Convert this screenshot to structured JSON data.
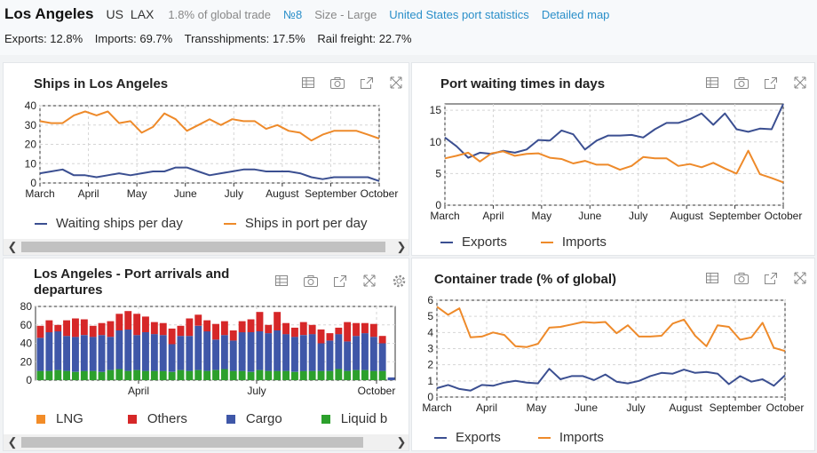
{
  "header": {
    "title": "Los Angeles",
    "country": "US",
    "code": "LAX",
    "share": "1.8% of global trade",
    "rank": "№8",
    "size": "Size - Large",
    "link_stats": "United States port statistics",
    "link_map": "Detailed map",
    "stats": [
      "Exports: 12.8%",
      "Imports: 69.7%",
      "Transshipments: 17.5%",
      "Rail freight: 22.7%"
    ]
  },
  "colors": {
    "blue": "#3b4f91",
    "orange": "#ee8a2a",
    "red": "#d62728",
    "cargo": "#3f57a8",
    "green": "#2ca02c",
    "lng": "#f28c28"
  },
  "panels": {
    "ships": {
      "title": "Ships in Los Angeles",
      "legend": [
        "Waiting ships per day",
        "Ships in port per day"
      ]
    },
    "waiting": {
      "title": "Port waiting times in days",
      "legend": [
        "Exports",
        "Imports"
      ]
    },
    "arrivals": {
      "title": "Los Angeles - Port arrivals and departures",
      "legend": [
        "LNG",
        "Others",
        "Cargo",
        "Liquid b"
      ]
    },
    "container": {
      "title": "Container trade (% of global)",
      "legend": [
        "Exports",
        "Imports"
      ]
    }
  },
  "chart_data": [
    {
      "type": "line",
      "title": "Ships in Los Angeles",
      "ylim": [
        0,
        40
      ],
      "yticks": [
        0,
        10,
        20,
        30,
        40
      ],
      "xticks": [
        "March",
        "April",
        "May",
        "June",
        "July",
        "August",
        "September",
        "October"
      ],
      "series": [
        {
          "name": "Waiting ships per day",
          "values": [
            5,
            6,
            7,
            4,
            4,
            3,
            4,
            5,
            4,
            5,
            6,
            6,
            8,
            8,
            6,
            4,
            5,
            6,
            7,
            7,
            6,
            6,
            6,
            5,
            3,
            2,
            3,
            3,
            3,
            3,
            1
          ]
        },
        {
          "name": "Ships in port per day",
          "values": [
            32,
            31,
            31,
            35,
            37,
            35,
            37,
            31,
            32,
            26,
            29,
            36,
            33,
            27,
            30,
            33,
            30,
            33,
            32,
            32,
            28,
            30,
            27,
            26,
            22,
            25,
            27,
            27,
            27,
            25,
            23
          ]
        }
      ]
    },
    {
      "type": "line",
      "title": "Port waiting times in days",
      "ylim": [
        0,
        16
      ],
      "yticks": [
        0,
        5,
        10,
        15
      ],
      "xticks": [
        "March",
        "April",
        "May",
        "June",
        "July",
        "August",
        "September",
        "October"
      ],
      "series": [
        {
          "name": "Exports",
          "values": [
            10.7,
            9.3,
            7.5,
            8.3,
            8.1,
            8.6,
            8.3,
            8.8,
            10.3,
            10.2,
            11.8,
            11.2,
            8.8,
            10.2,
            11.0,
            11.0,
            11.1,
            10.7,
            12.0,
            13.0,
            13.0,
            13.6,
            14.5,
            12.7,
            14.5,
            12.0,
            11.6,
            12.1,
            12.0,
            16.0
          ]
        },
        {
          "name": "Imports",
          "values": [
            7.4,
            7.8,
            8.3,
            6.9,
            8.2,
            8.5,
            7.8,
            8.1,
            8.2,
            7.5,
            7.3,
            6.6,
            7.0,
            6.4,
            6.4,
            5.6,
            6.2,
            7.6,
            7.4,
            7.4,
            6.2,
            6.5,
            6.0,
            6.7,
            5.8,
            5.0,
            8.6,
            4.9,
            4.3,
            3.6
          ]
        }
      ]
    },
    {
      "type": "bar",
      "title": "Los Angeles - Port arrivals and departures",
      "ylim": [
        0,
        80
      ],
      "yticks": [
        0,
        20,
        40,
        60,
        80
      ],
      "xticks": [
        "April",
        "July",
        "October"
      ],
      "series": [
        {
          "name": "Liquid b",
          "values": [
            10,
            10,
            11,
            10,
            9,
            10,
            10,
            9,
            11,
            12,
            10,
            11,
            10,
            10,
            10,
            9,
            11,
            10,
            11,
            10,
            11,
            12,
            10,
            10,
            9,
            11,
            10,
            10,
            10,
            9,
            10,
            10,
            10,
            10,
            12,
            10,
            11,
            11,
            10,
            10,
            0
          ]
        },
        {
          "name": "Cargo",
          "values": [
            36,
            42,
            42,
            38,
            38,
            39,
            37,
            40,
            36,
            42,
            45,
            38,
            42,
            40,
            39,
            30,
            37,
            38,
            48,
            43,
            33,
            37,
            33,
            42,
            43,
            42,
            41,
            44,
            40,
            38,
            39,
            40,
            30,
            33,
            38,
            32,
            37,
            40,
            37,
            30,
            3
          ]
        },
        {
          "name": "Others",
          "values": [
            13,
            13,
            7,
            17,
            20,
            17,
            12,
            13,
            17,
            18,
            20,
            23,
            17,
            13,
            13,
            17,
            11,
            19,
            12,
            12,
            17,
            15,
            11,
            12,
            14,
            21,
            9,
            20,
            12,
            10,
            14,
            10,
            15,
            8,
            7,
            21,
            14,
            11,
            14,
            8,
            0
          ]
        },
        {
          "name": "LNG",
          "values": [
            0,
            0,
            0,
            0,
            0,
            0,
            0,
            0,
            0,
            0,
            0,
            0,
            0,
            0,
            0,
            0,
            0,
            0,
            0,
            0,
            0,
            0,
            0,
            0,
            0,
            0,
            0,
            0,
            0,
            0,
            0,
            0,
            0,
            0,
            0,
            0,
            0,
            0,
            0,
            0,
            0
          ]
        }
      ]
    },
    {
      "type": "line",
      "title": "Container trade (% of global)",
      "ylim": [
        0,
        6
      ],
      "yticks": [
        0,
        1,
        2,
        3,
        4,
        5,
        6
      ],
      "xticks": [
        "March",
        "April",
        "May",
        "June",
        "July",
        "August",
        "September",
        "October"
      ],
      "series": [
        {
          "name": "Exports",
          "values": [
            0.55,
            0.75,
            0.5,
            0.4,
            0.75,
            0.7,
            0.9,
            1.0,
            0.9,
            0.85,
            1.75,
            1.1,
            1.3,
            1.3,
            1.05,
            1.4,
            0.95,
            0.85,
            1.0,
            1.3,
            1.5,
            1.45,
            1.7,
            1.5,
            1.55,
            1.45,
            0.8,
            1.3,
            0.95,
            1.1,
            0.7,
            1.35
          ]
        },
        {
          "name": "Imports",
          "values": [
            5.6,
            5.1,
            5.5,
            3.7,
            3.75,
            4.0,
            3.85,
            3.15,
            3.1,
            3.3,
            4.3,
            4.35,
            4.5,
            4.65,
            4.6,
            4.65,
            3.95,
            4.45,
            3.75,
            3.75,
            3.8,
            4.55,
            4.8,
            3.8,
            3.15,
            4.45,
            4.35,
            3.55,
            3.7,
            4.6,
            3.05,
            2.85
          ]
        }
      ]
    }
  ]
}
